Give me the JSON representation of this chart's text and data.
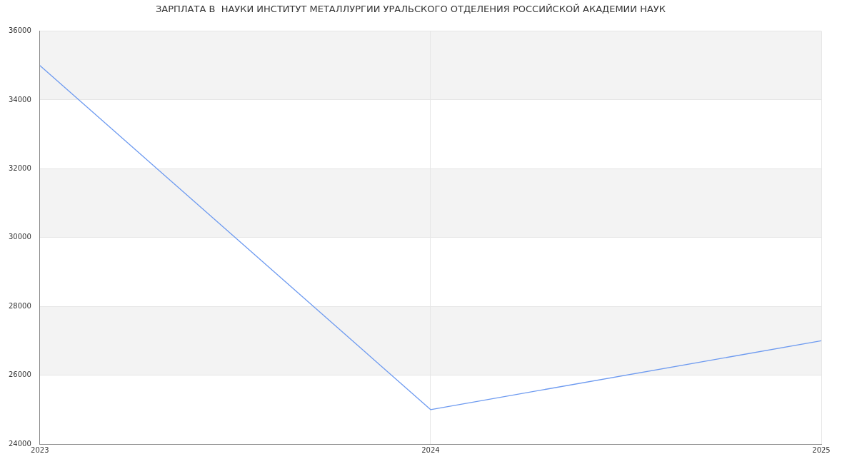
{
  "chart_data": {
    "type": "line",
    "title": "ЗАРПЛАТА В  НАУКИ ИНСТИТУТ МЕТАЛЛУРГИИ УРАЛЬСКОГО ОТДЕЛЕНИЯ РОССИЙСКОЙ АКАДЕМИИ НАУК",
    "x": [
      2023,
      2024,
      2025
    ],
    "series": [
      {
        "color": "#6d9af0",
        "values": [
          35000,
          25000,
          27000
        ]
      }
    ],
    "xlim": [
      2023,
      2025
    ],
    "xticks": [
      2023,
      2024,
      2025
    ],
    "ylim": [
      24000,
      36000
    ],
    "yticks": [
      24000,
      26000,
      28000,
      30000,
      32000,
      34000,
      36000
    ],
    "grid": true,
    "marker": "none",
    "line_style": "solid",
    "legend": false
  }
}
